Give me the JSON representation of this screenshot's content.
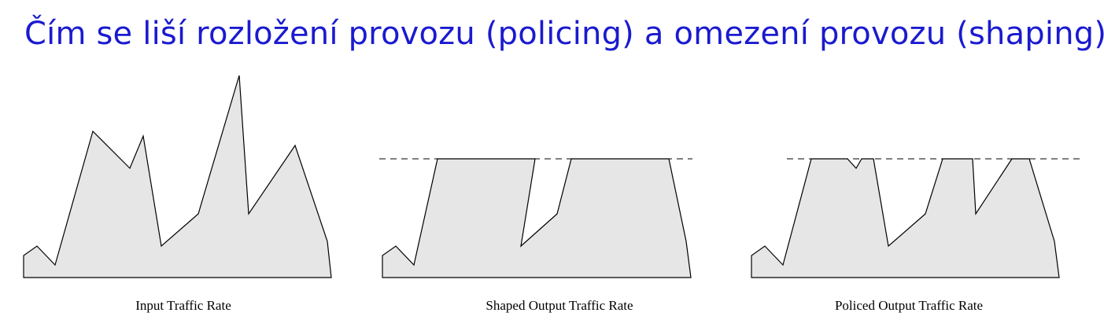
{
  "title": "Čím se liší rozložení provozu (policing) a omezení provozu (shaping)?",
  "colors": {
    "title": "#1a1ad0",
    "area_fill": "#e6e6e6",
    "stroke": "#000000"
  },
  "panels": [
    {
      "id": "input",
      "label": "Input Traffic Rate",
      "shows_rate_limit_line": false
    },
    {
      "id": "shaped",
      "label": "Shaped Output Traffic Rate",
      "shows_rate_limit_line": true
    },
    {
      "id": "policed",
      "label": "Policed Output Traffic Rate",
      "shows_rate_limit_line": true
    }
  ]
}
